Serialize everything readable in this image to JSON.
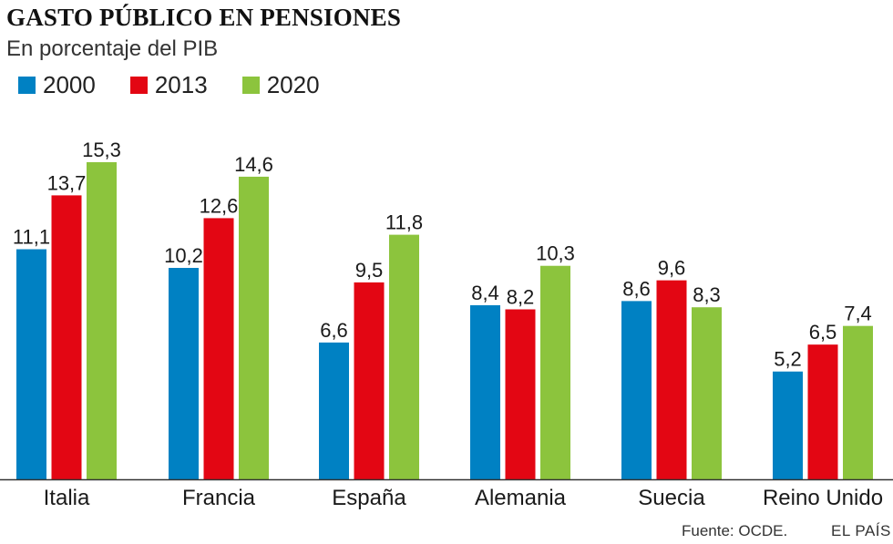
{
  "chart_data": {
    "type": "bar",
    "title": "GASTO PÚBLICO EN PENSIONES",
    "subtitle": "En porcentaje del PIB",
    "categories": [
      "Italia",
      "Francia",
      "España",
      "Alemania",
      "Suecia",
      "Reino Unido"
    ],
    "series": [
      {
        "name": "2000",
        "color": "#0081c3",
        "values": [
          11.1,
          10.2,
          6.6,
          8.4,
          8.6,
          5.2
        ],
        "labels": [
          "11,1",
          "10,2",
          "6,6",
          "8,4",
          "8,6",
          "5,2"
        ]
      },
      {
        "name": "2013",
        "color": "#e30613",
        "values": [
          13.7,
          12.6,
          9.5,
          8.2,
          9.6,
          6.5
        ],
        "labels": [
          "13,7",
          "12,6",
          "9,5",
          "8,2",
          "9,6",
          "6,5"
        ]
      },
      {
        "name": "2020",
        "color": "#8cc43d",
        "values": [
          15.3,
          14.6,
          11.8,
          10.3,
          8.3,
          7.4
        ],
        "labels": [
          "15,3",
          "14,6",
          "11,8",
          "10,3",
          "8,3",
          "7,4"
        ]
      }
    ],
    "ylim": [
      0,
      15.3
    ],
    "grid": false,
    "legend_position": "top-left",
    "source": "Fuente: OCDE.",
    "brand": "EL PAÍS"
  }
}
